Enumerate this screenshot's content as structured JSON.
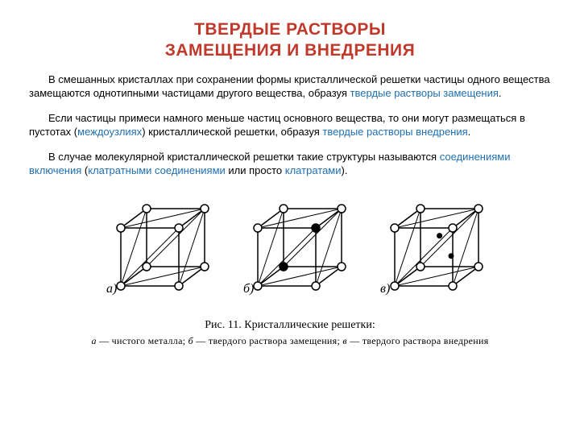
{
  "title_line1": "ТВЕРДЫЕ РАСТВОРЫ",
  "title_line2": "ЗАМЕЩЕНИЯ И ВНЕДРЕНИЯ",
  "title_color": "#c0392b",
  "p1a": "В смешанных кристаллах при сохранении формы кристаллической решетки частицы одного вещества замещаются однотипными частицами другого вещества, образуя ",
  "p1b": "твердые растворы замещения",
  "p1c": ".",
  "p2a": "Если частицы примеси намного меньше частиц основного вещества, то они могут размещаться в пустотах (",
  "p2b": "междоузлиях",
  "p2c": ") кристаллической решетки, образуя ",
  "p2d": "твердые растворы внедрения",
  "p2e": ".",
  "p3a": "В случае молекулярной кристаллической решетки такие структуры называются ",
  "p3b": "соединениями включения",
  "p3c": " (",
  "p3d": "клатратными соединениями",
  "p3e": " или просто ",
  "p3f": "клатратами",
  "p3g": ").",
  "labels": {
    "a": "а)",
    "b": "б)",
    "c": "в)"
  },
  "caption_main": "Рис. 11. Кристаллические решетки:",
  "caption_sub_a": "а",
  "caption_sub_a2": " — чистого металла; ",
  "caption_sub_b": "б",
  "caption_sub_b2": " — твердого раствора замещения; ",
  "caption_sub_c": "в",
  "caption_sub_c2": " — твердого раствора внедрения",
  "fig": {
    "stroke": "#000000",
    "atom_r": 5,
    "atom_fill": "#ffffff",
    "solute_fill": "#000000",
    "interstitial_r": 3.5
  }
}
